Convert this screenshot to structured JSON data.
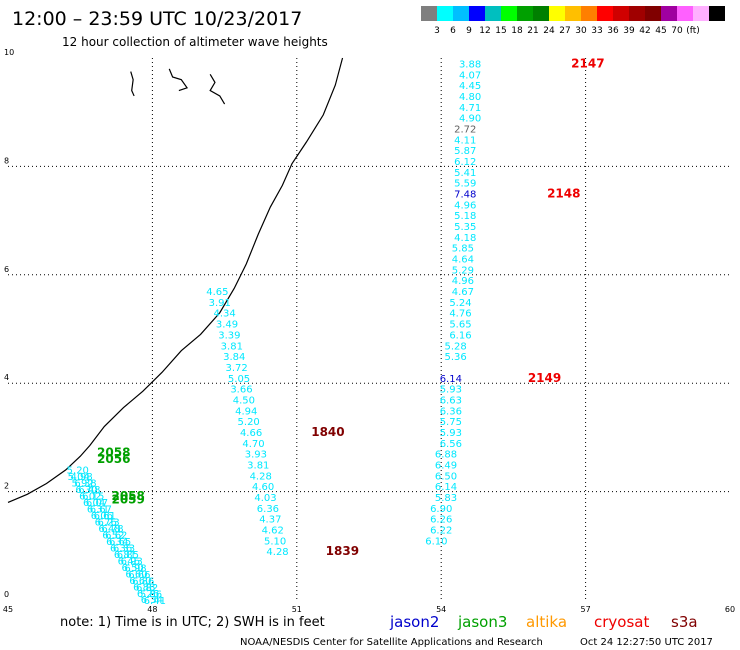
{
  "header": {
    "title": "12:00 – 23:59 UTC 10/23/2017",
    "subtitle": "12 hour collection of altimeter wave heights"
  },
  "legend": {
    "colors": [
      "#7f7f7f",
      "#00ffff",
      "#00bfff",
      "#0000ff",
      "#00bfbf",
      "#00ff00",
      "#00a000",
      "#007f00",
      "#ffff00",
      "#ffbf00",
      "#ff7f00",
      "#ff0000",
      "#d00000",
      "#a00000",
      "#800000",
      "#a000a0",
      "#ff60ff",
      "#ffb0ff",
      "#000000"
    ],
    "labels": [
      "3",
      "6",
      "9",
      "12",
      "15",
      "18",
      "21",
      "24",
      "27",
      "30",
      "33",
      "36",
      "39",
      "42",
      "45",
      "70",
      "(ft)"
    ]
  },
  "footer": {
    "note": "note:  1) Time is in UTC;  2) SWH is in feet",
    "satellites": [
      {
        "name": "jason2",
        "color": "#0000cc"
      },
      {
        "name": "jason3",
        "color": "#00a000"
      },
      {
        "name": "altika",
        "color": "#ff9900"
      },
      {
        "name": "cryosat",
        "color": "#ee0000"
      },
      {
        "name": "s3a",
        "color": "#800000"
      }
    ],
    "credit": "NOAA/NESDIS Center for Satellite Applications and Research",
    "timestamp": "Oct 24 12:27:50 UTC 2017"
  },
  "chart_data": {
    "type": "scatter",
    "x_ticks": [
      "45",
      "48",
      "51",
      "54",
      "57",
      "60"
    ],
    "y_ticks": [
      "0",
      "2",
      "4",
      "6",
      "8",
      "10"
    ],
    "xlim": [
      45,
      60
    ],
    "ylim": [
      0,
      10
    ],
    "coastline": [
      [
        45.0,
        1.8
      ],
      [
        45.4,
        1.95
      ],
      [
        45.8,
        2.15
      ],
      [
        46.2,
        2.4
      ],
      [
        46.5,
        2.65
      ],
      [
        46.7,
        2.85
      ],
      [
        47.0,
        3.2
      ],
      [
        47.4,
        3.55
      ],
      [
        47.8,
        3.85
      ],
      [
        48.2,
        4.2
      ],
      [
        48.6,
        4.6
      ],
      [
        49.0,
        4.9
      ],
      [
        49.4,
        5.3
      ],
      [
        49.7,
        5.75
      ],
      [
        49.95,
        6.2
      ],
      [
        50.2,
        6.75
      ],
      [
        50.45,
        7.25
      ],
      [
        50.7,
        7.65
      ],
      [
        50.9,
        8.05
      ],
      [
        51.2,
        8.45
      ],
      [
        51.55,
        8.95
      ],
      [
        51.8,
        9.5
      ],
      [
        51.95,
        10.0
      ]
    ],
    "islands": [
      [
        [
          47.55,
          9.75
        ],
        [
          47.6,
          9.6
        ],
        [
          47.57,
          9.4
        ],
        [
          47.62,
          9.3
        ]
      ],
      [
        [
          48.35,
          9.8
        ],
        [
          48.42,
          9.65
        ],
        [
          48.6,
          9.6
        ],
        [
          48.72,
          9.45
        ],
        [
          48.55,
          9.4
        ]
      ],
      [
        [
          49.2,
          9.7
        ],
        [
          49.3,
          9.55
        ],
        [
          49.2,
          9.4
        ],
        [
          49.4,
          9.3
        ],
        [
          49.5,
          9.15
        ]
      ]
    ],
    "series": [
      {
        "name": "jason2",
        "color": "#00e8ff",
        "points": [
          [
            48.05,
            0.0,
            "6.41"
          ],
          [
            47.97,
            0.12,
            "5.86"
          ],
          [
            47.89,
            0.24,
            "6.82"
          ],
          [
            47.81,
            0.36,
            "6.86"
          ],
          [
            47.73,
            0.48,
            "6.66"
          ],
          [
            47.65,
            0.6,
            "6.98"
          ],
          [
            47.57,
            0.73,
            "6.93"
          ],
          [
            47.49,
            0.85,
            "6.85"
          ],
          [
            47.41,
            0.97,
            "6.33"
          ],
          [
            47.33,
            1.09,
            "6.65"
          ],
          [
            47.25,
            1.21,
            "6.62"
          ],
          [
            47.17,
            1.33,
            "6.78"
          ],
          [
            47.09,
            1.45,
            "6.23"
          ],
          [
            47.01,
            1.57,
            "6.61"
          ],
          [
            46.93,
            1.69,
            "6.67"
          ],
          [
            46.85,
            1.81,
            "6.07"
          ],
          [
            46.77,
            1.93,
            "6.15"
          ],
          [
            46.69,
            2.05,
            "6.48"
          ],
          [
            46.61,
            2.17,
            "6.38"
          ],
          [
            46.53,
            2.29,
            "4.98"
          ],
          [
            46.45,
            2.41,
            "5.20"
          ],
          [
            47.99,
            0.02,
            "6.34"
          ],
          [
            47.91,
            0.13,
            "6.26"
          ],
          [
            47.83,
            0.25,
            "6.88"
          ],
          [
            47.75,
            0.37,
            "6.60"
          ],
          [
            47.67,
            0.49,
            "6.60"
          ],
          [
            47.59,
            0.61,
            "6.50"
          ],
          [
            47.51,
            0.73,
            "6.46"
          ],
          [
            47.43,
            0.85,
            "6.81"
          ],
          [
            47.35,
            0.97,
            "6.36"
          ],
          [
            47.27,
            1.09,
            "6.34"
          ],
          [
            47.19,
            1.21,
            "6.52"
          ],
          [
            47.11,
            1.33,
            "6.48"
          ],
          [
            47.03,
            1.45,
            "6.76"
          ],
          [
            46.95,
            1.57,
            "6.06"
          ],
          [
            46.87,
            1.69,
            "6.31"
          ],
          [
            46.79,
            1.81,
            "6.04"
          ],
          [
            46.71,
            1.93,
            "6.02"
          ],
          [
            46.63,
            2.05,
            "6.30"
          ],
          [
            46.55,
            2.17,
            "5.92"
          ],
          [
            46.47,
            2.29,
            "5.04"
          ]
        ]
      },
      {
        "name": "jason3",
        "color": "#00a000",
        "points": [
          [
            46.85,
            2.6,
            "2056"
          ],
          [
            46.85,
            2.72,
            "2058"
          ],
          [
            47.15,
            1.85,
            "2059"
          ],
          [
            47.15,
            1.92,
            "2058"
          ]
        ]
      },
      {
        "name": "cryosat-track",
        "color": "#00e8ff",
        "points": [
          [
            54.6,
            9.9,
            "3.88"
          ],
          [
            54.6,
            9.7,
            "4.07"
          ],
          [
            54.6,
            9.5,
            "4.45"
          ],
          [
            54.6,
            9.3,
            "4.80"
          ],
          [
            54.6,
            9.1,
            "4.71"
          ],
          [
            54.6,
            8.9,
            "4.90"
          ],
          [
            54.5,
            8.5,
            "4.11"
          ],
          [
            54.5,
            8.3,
            "5.87"
          ],
          [
            54.5,
            8.1,
            "6.12"
          ],
          [
            54.5,
            7.9,
            "5.41"
          ],
          [
            54.5,
            7.7,
            "5.59"
          ],
          [
            54.5,
            7.3,
            "4.96"
          ],
          [
            54.5,
            7.1,
            "5.18"
          ],
          [
            54.5,
            6.9,
            "5.35"
          ],
          [
            54.5,
            6.7,
            "4.18"
          ],
          [
            54.45,
            6.5,
            "5.85"
          ],
          [
            54.45,
            6.3,
            "4.64"
          ],
          [
            54.45,
            6.1,
            "5.29"
          ],
          [
            54.45,
            5.9,
            "4.96"
          ],
          [
            54.45,
            5.7,
            "4.67"
          ],
          [
            54.4,
            5.5,
            "5.24"
          ],
          [
            54.4,
            5.3,
            "4.76"
          ],
          [
            54.4,
            5.1,
            "5.65"
          ],
          [
            54.4,
            4.9,
            "6.16"
          ],
          [
            54.3,
            4.7,
            "5.28"
          ],
          [
            54.3,
            4.5,
            "5.36"
          ],
          [
            54.2,
            3.9,
            "5.93"
          ],
          [
            54.2,
            3.7,
            "6.63"
          ],
          [
            54.2,
            3.5,
            "6.36"
          ],
          [
            54.2,
            3.3,
            "5.75"
          ],
          [
            54.2,
            3.1,
            "5.93"
          ],
          [
            54.2,
            2.9,
            "6.56"
          ],
          [
            54.1,
            2.7,
            "6.88"
          ],
          [
            54.1,
            2.5,
            "6.49"
          ],
          [
            54.1,
            2.3,
            "6.50"
          ],
          [
            54.1,
            2.1,
            "6.14"
          ],
          [
            54.1,
            1.9,
            "5.83"
          ],
          [
            54.0,
            1.7,
            "6.90"
          ],
          [
            54.0,
            1.5,
            "6.26"
          ],
          [
            54.0,
            1.3,
            "6.22"
          ],
          [
            53.9,
            1.1,
            "6.10"
          ]
        ]
      },
      {
        "name": "cryosat-gray",
        "color": "#606060",
        "points": [
          [
            54.5,
            8.7,
            "2.72"
          ]
        ]
      },
      {
        "name": "cryosat-blue",
        "color": "#0000cc",
        "points": [
          [
            54.5,
            7.5,
            "7.48"
          ],
          [
            54.2,
            4.1,
            "6.14"
          ]
        ]
      },
      {
        "name": "cryosat",
        "color": "#ee0000",
        "points": [
          [
            56.7,
            9.9,
            "2147"
          ],
          [
            56.2,
            7.5,
            "2148"
          ],
          [
            55.8,
            4.1,
            "2149"
          ]
        ]
      },
      {
        "name": "s3a-track",
        "color": "#00e8ff",
        "points": [
          [
            49.35,
            5.7,
            "4.65"
          ],
          [
            49.4,
            5.5,
            "3.91"
          ],
          [
            49.5,
            5.3,
            "4.34"
          ],
          [
            49.55,
            5.1,
            "3.49"
          ],
          [
            49.6,
            4.9,
            "3.39"
          ],
          [
            49.65,
            4.7,
            "3.81"
          ],
          [
            49.7,
            4.5,
            "3.84"
          ],
          [
            49.75,
            4.3,
            "3.72"
          ],
          [
            49.8,
            4.1,
            "5.05"
          ],
          [
            49.85,
            3.9,
            "3.66"
          ],
          [
            49.9,
            3.7,
            "4.50"
          ],
          [
            49.95,
            3.5,
            "4.94"
          ],
          [
            50.0,
            3.3,
            "5.20"
          ],
          [
            50.05,
            3.1,
            "4.66"
          ],
          [
            50.1,
            2.9,
            "4.70"
          ],
          [
            50.15,
            2.7,
            "3.93"
          ],
          [
            50.2,
            2.5,
            "3.81"
          ],
          [
            50.25,
            2.3,
            "4.28"
          ],
          [
            50.3,
            2.1,
            "4.60"
          ],
          [
            50.35,
            1.9,
            "4.03"
          ],
          [
            50.4,
            1.7,
            "6.36"
          ],
          [
            50.45,
            1.5,
            "4.37"
          ],
          [
            50.5,
            1.3,
            "4.62"
          ],
          [
            50.55,
            1.1,
            "5.10"
          ],
          [
            50.6,
            0.9,
            "4.28"
          ]
        ]
      },
      {
        "name": "s3a",
        "color": "#800000",
        "points": [
          [
            51.3,
            3.1,
            "1840"
          ],
          [
            51.6,
            0.9,
            "1839"
          ]
        ]
      }
    ]
  }
}
